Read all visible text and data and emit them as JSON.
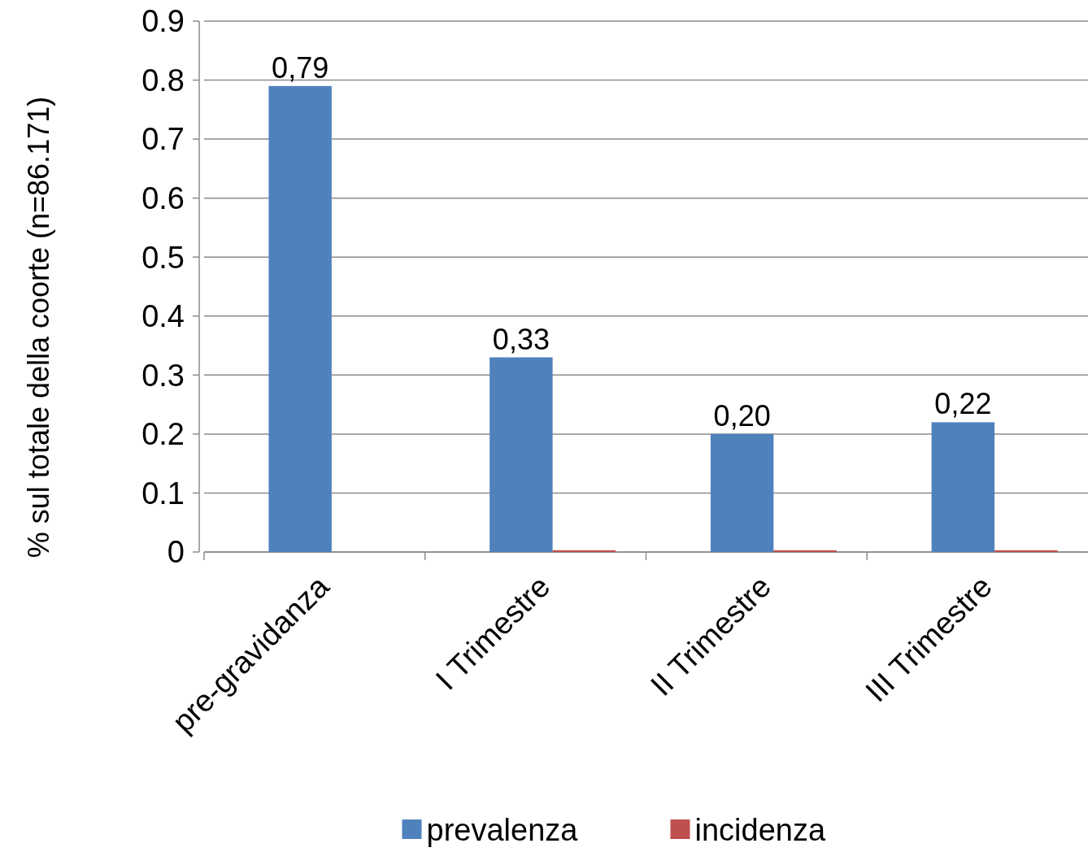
{
  "chart_data": {
    "type": "bar",
    "ylabel": "% sul totale della coorte (n=86.171)",
    "categories": [
      "pre-gravidanza",
      "I Trimestre",
      "II Trimestre",
      "III Trimestre"
    ],
    "series": [
      {
        "name": "prevalenza",
        "color": "#4f81bd",
        "values": [
          0.79,
          0.33,
          0.2,
          0.22
        ],
        "value_labels": [
          "0,79",
          "0,33",
          "0,20",
          "0,22"
        ]
      },
      {
        "name": "incidenza",
        "color": "#c0504d",
        "values": [
          null,
          0.003,
          0.003,
          0.003
        ]
      }
    ],
    "ylim": [
      0,
      0.9
    ],
    "yticks": [
      0,
      0.1,
      0.2,
      0.3,
      0.4,
      0.5,
      0.6,
      0.7,
      0.8,
      0.9
    ],
    "grid": "y",
    "legend": "bottom"
  }
}
